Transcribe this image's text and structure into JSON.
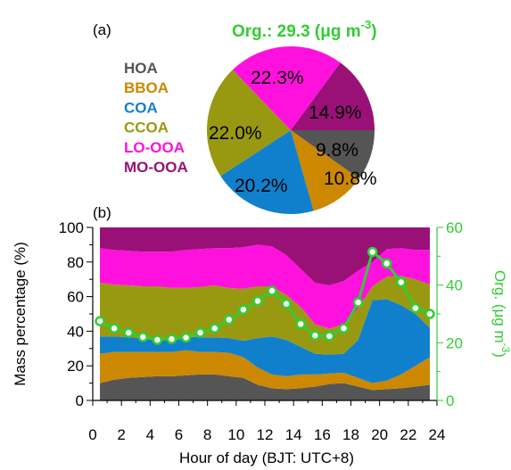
{
  "chart_data": [
    {
      "type": "pie",
      "panel_label": "(a)",
      "title": "Org.: 29.3 (μg m",
      "title_sup": "-3",
      "title_suffix": ")",
      "title_color": "#33cc33",
      "slices": [
        {
          "name": "HOA",
          "value": 9.8,
          "label": "9.8%",
          "color": "#555555"
        },
        {
          "name": "BBOA",
          "value": 10.8,
          "label": "10.8%",
          "color": "#cc8800"
        },
        {
          "name": "COA",
          "value": 20.2,
          "label": "20.2%",
          "color": "#1180cc"
        },
        {
          "name": "CCOA",
          "value": 22.0,
          "label": "22.0%",
          "color": "#999911"
        },
        {
          "name": "LO-OOA",
          "value": 22.3,
          "label": "22.3%",
          "color": "#ff11dd"
        },
        {
          "name": "MO-OOA",
          "value": 14.9,
          "label": "14.9%",
          "color": "#991177"
        }
      ]
    },
    {
      "type": "area",
      "panel_label": "(b)",
      "stacked": true,
      "xlabel": "Hour of day (BJT: UTC+8)",
      "ylabel": "Mass percentage (%)",
      "y2label": "Org. (μg m",
      "y2label_sup": "-3",
      "y2label_suffix": ")",
      "xlim": [
        0,
        24
      ],
      "ylim": [
        0,
        100
      ],
      "y2lim": [
        0,
        60
      ],
      "xticks": [
        "0",
        "2",
        "4",
        "6",
        "8",
        "10",
        "12",
        "14",
        "16",
        "18",
        "20",
        "22",
        "24"
      ],
      "yticks": [
        "0",
        "20",
        "40",
        "60",
        "80",
        "100"
      ],
      "y2ticks": [
        "0",
        "20",
        "40",
        "60"
      ],
      "x": [
        0.5,
        1.5,
        2.5,
        3.5,
        4.5,
        5.5,
        6.5,
        7.5,
        8.5,
        9.5,
        10.5,
        11.5,
        12.5,
        13.5,
        14.5,
        15.5,
        16.5,
        17.5,
        18.5,
        19.5,
        20.5,
        21.5,
        22.5,
        23.5
      ],
      "series": [
        {
          "name": "HOA",
          "color": "#555555",
          "values": [
            10,
            12,
            13,
            13.5,
            14,
            14,
            14.5,
            15,
            15,
            14,
            13,
            9,
            7,
            6.5,
            7,
            8,
            9.5,
            10,
            8,
            6,
            6.5,
            7,
            8,
            9
          ]
        },
        {
          "name": "BBOA",
          "color": "#cc8800",
          "values": [
            17,
            16,
            15,
            14.5,
            14,
            14,
            14.5,
            13,
            13,
            13.5,
            12,
            10,
            8,
            7.5,
            8,
            7,
            6,
            6,
            5,
            4,
            5,
            8,
            12,
            16
          ]
        },
        {
          "name": "COA",
          "color": "#1180cc",
          "values": [
            10,
            9,
            8.5,
            8,
            8,
            8,
            8,
            8.5,
            8.5,
            8.5,
            9.5,
            17,
            22,
            21,
            16,
            12,
            11,
            11,
            22,
            48,
            47,
            40,
            30,
            17
          ]
        },
        {
          "name": "CCOA",
          "color": "#999911",
          "values": [
            31,
            30,
            30,
            30,
            30,
            29,
            28,
            29,
            30,
            29,
            30,
            30,
            29,
            26,
            23,
            17,
            15,
            17,
            18,
            8,
            13,
            17,
            20,
            25
          ]
        },
        {
          "name": "LO-OOA",
          "color": "#ff11dd",
          "values": [
            20,
            20,
            20,
            20,
            20,
            21,
            22,
            22,
            21.5,
            23,
            24,
            24,
            23,
            23,
            22,
            24,
            25,
            25,
            22,
            14,
            16,
            16,
            17,
            20
          ]
        },
        {
          "name": "MO-OOA",
          "color": "#991177",
          "values": [
            12,
            13,
            13.5,
            14.5,
            14,
            14,
            13,
            12.5,
            12,
            12,
            11.5,
            10,
            11,
            16,
            24,
            32,
            33.5,
            31,
            25,
            20,
            12.5,
            12,
            13,
            13
          ]
        }
      ],
      "org_series": {
        "name": "Org.",
        "axis": "right",
        "color": "#33cc33",
        "values": [
          27.5,
          25,
          23.5,
          22,
          21,
          21.3,
          21.8,
          23.5,
          25,
          28,
          31.5,
          34.5,
          38,
          33.5,
          26.5,
          22.5,
          22.3,
          25,
          34,
          51.5,
          47.5,
          41,
          32,
          30
        ]
      }
    }
  ]
}
